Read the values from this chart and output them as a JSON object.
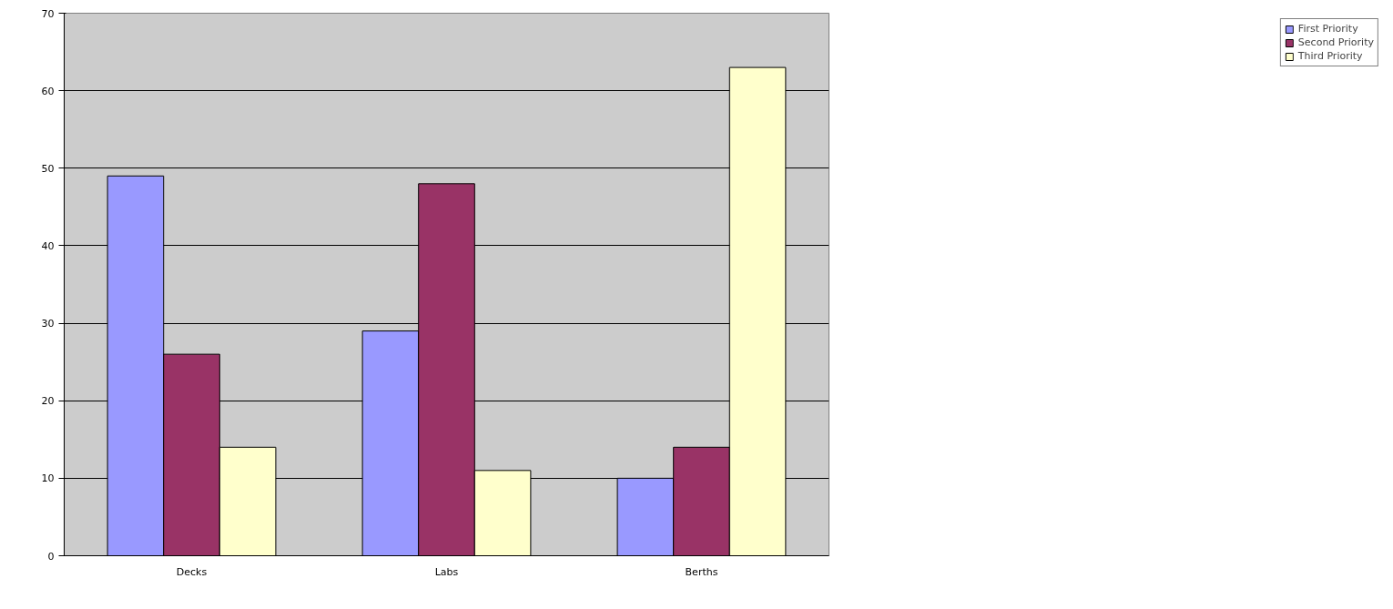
{
  "chart_data": {
    "type": "bar",
    "categories": [
      "Decks",
      "Labs",
      "Berths"
    ],
    "series": [
      {
        "name": "First Priority",
        "color": "#9999ff",
        "values": [
          49,
          29,
          10
        ]
      },
      {
        "name": "Second Priority",
        "color": "#993366",
        "values": [
          26,
          48,
          14
        ]
      },
      {
        "name": "Third Priority",
        "color": "#ffffcc",
        "values": [
          14,
          11,
          63
        ]
      }
    ],
    "ylim": [
      0,
      70
    ],
    "yticks": [
      0,
      10,
      20,
      30,
      40,
      50,
      60,
      70
    ],
    "grid": "y",
    "legend": "right"
  }
}
